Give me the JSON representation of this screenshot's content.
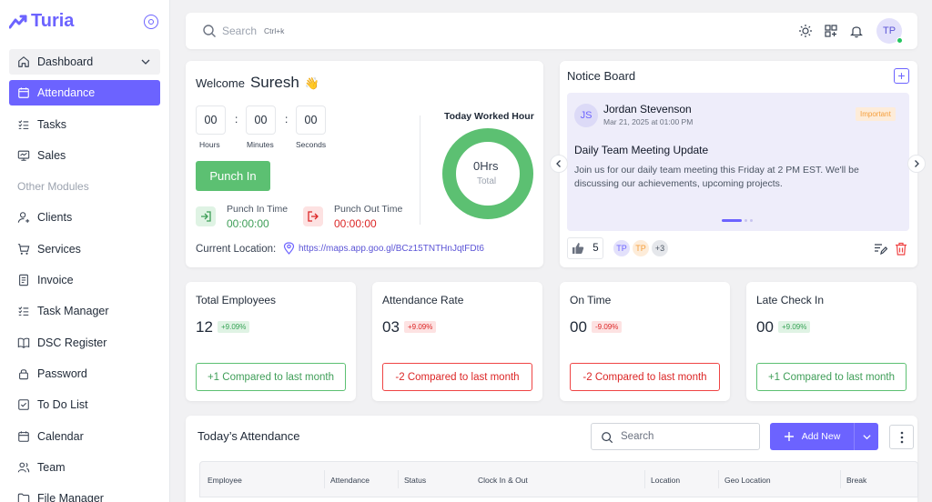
{
  "app": {
    "name": "Turia"
  },
  "sidebar": {
    "items": [
      {
        "label": "Dashboard",
        "icon": "home-icon"
      },
      {
        "label": "Attendance",
        "icon": "calendar-icon"
      },
      {
        "label": "Tasks",
        "icon": "list-check-icon"
      },
      {
        "label": "Sales",
        "icon": "monitor-icon"
      }
    ],
    "section_label": "Other Modules",
    "modules": [
      {
        "label": "Clients",
        "icon": "user-icon"
      },
      {
        "label": "Services",
        "icon": "cart-icon"
      },
      {
        "label": "Invoice",
        "icon": "invoice-icon"
      },
      {
        "label": "Task Manager",
        "icon": "list-check-icon"
      },
      {
        "label": "DSC Register",
        "icon": "book-icon"
      },
      {
        "label": "Password",
        "icon": "lock-icon"
      },
      {
        "label": "To Do List",
        "icon": "checkbox-icon"
      },
      {
        "label": "Calendar",
        "icon": "calendar-icon"
      },
      {
        "label": "Team",
        "icon": "team-icon"
      },
      {
        "label": "File Manager",
        "icon": "folder-icon"
      }
    ]
  },
  "topbar": {
    "search_placeholder": "Search",
    "shortcut": "Ctrl+k",
    "avatar_initials": "TP"
  },
  "welcome": {
    "greeting": "Welcome",
    "name": "Suresh",
    "emoji": "👋",
    "hours": "00",
    "minutes": "00",
    "seconds": "00",
    "hours_label": "Hours",
    "minutes_label": "Minutes",
    "seconds_label": "Seconds",
    "punch_in_button": "Punch In",
    "punch_in_label": "Punch In Time",
    "punch_in_time": "00:00:00",
    "punch_out_label": "Punch Out Time",
    "punch_out_time": "00:00:00",
    "location_label": "Current Location:",
    "location_url": "https://maps.app.goo.gl/BCz15TNTHnJqtFDt6",
    "worked_title": "Today Worked Hour",
    "worked_value": "0Hrs",
    "worked_total": "Total"
  },
  "notice": {
    "title": "Notice Board",
    "add_label": "+",
    "author_initials": "JS",
    "author": "Jordan Stevenson",
    "date": "Mar 21, 2025 at 01:00 PM",
    "badge": "Important",
    "heading": "Daily Team Meeting Update",
    "body": "Join us for our daily team meeting this Friday at 2 PM EST. We'll be discussing our achievements, upcoming projects.",
    "likes": "5",
    "viewers": [
      "TP",
      "TP"
    ],
    "more_viewers": "+3"
  },
  "stats": [
    {
      "title": "Total Employees",
      "value": "12",
      "badge": "+9.09%",
      "trend": "up",
      "compare": "+1 Compared to last month"
    },
    {
      "title": "Attendance Rate",
      "value": "03",
      "badge": "+9.09%",
      "trend": "down",
      "compare": "-2 Compared to last month"
    },
    {
      "title": "On Time",
      "value": "00",
      "badge": "-9.09%",
      "trend": "down",
      "compare": "-2 Compared to last month"
    },
    {
      "title": "Late Check In",
      "value": "00",
      "badge": "+9.09%",
      "trend": "up",
      "compare": "+1 Compared to last month"
    }
  ],
  "attendance": {
    "title": "Today’s Attendance",
    "search_placeholder": "Search",
    "add_button": "Add New",
    "columns": [
      "Employee",
      "Attendance",
      "Status",
      "Clock In & Out",
      "Location",
      "Geo Location",
      "Break"
    ]
  },
  "colors": {
    "accent": "#6c63ff",
    "success": "#5cc072",
    "danger": "#ef4444"
  }
}
